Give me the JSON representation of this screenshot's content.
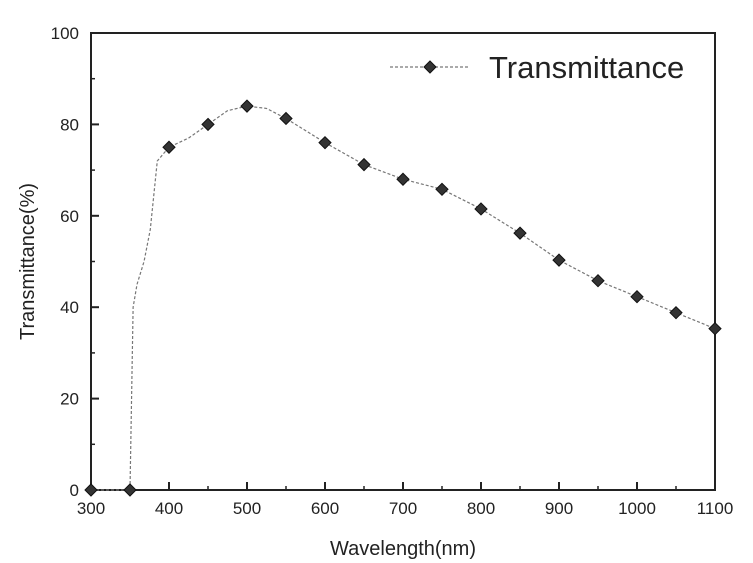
{
  "chart_data": {
    "type": "line",
    "title": "",
    "xlabel": "Wavelength(nm)",
    "ylabel": "Transmittance(%)",
    "xlim": [
      300,
      1100
    ],
    "ylim": [
      0,
      100
    ],
    "xticks": [
      300,
      400,
      500,
      600,
      700,
      800,
      900,
      1000,
      1100
    ],
    "yticks": [
      0,
      20,
      40,
      60,
      80,
      100
    ],
    "grid": false,
    "legend": {
      "position": "top-right",
      "entries": [
        "Transmittance"
      ]
    },
    "series": [
      {
        "name": "Transmittance",
        "color": "#333333",
        "markers": {
          "x": [
            300,
            350,
            400,
            450,
            500,
            550,
            600,
            650,
            700,
            750,
            800,
            850,
            900,
            950,
            1000,
            1050,
            1100
          ],
          "y": [
            0,
            0,
            75,
            80,
            84,
            81.3,
            76,
            71.2,
            68,
            65.8,
            61.5,
            56.2,
            50.3,
            45.8,
            42.3,
            38.8,
            35.3
          ]
        },
        "line": {
          "x": [
            300,
            350,
            354,
            359,
            368,
            376,
            385,
            400,
            425,
            450,
            475,
            500,
            525,
            550,
            600,
            650,
            700,
            750,
            800,
            850,
            900,
            950,
            1000,
            1050,
            1100
          ],
          "y": [
            0,
            0,
            40,
            45,
            50,
            57,
            72,
            75,
            77,
            80,
            83,
            84,
            83.5,
            81.3,
            76,
            71.2,
            68,
            65.8,
            61.5,
            56.2,
            50.3,
            45.8,
            42.3,
            38.8,
            35.3
          ]
        }
      }
    ]
  }
}
